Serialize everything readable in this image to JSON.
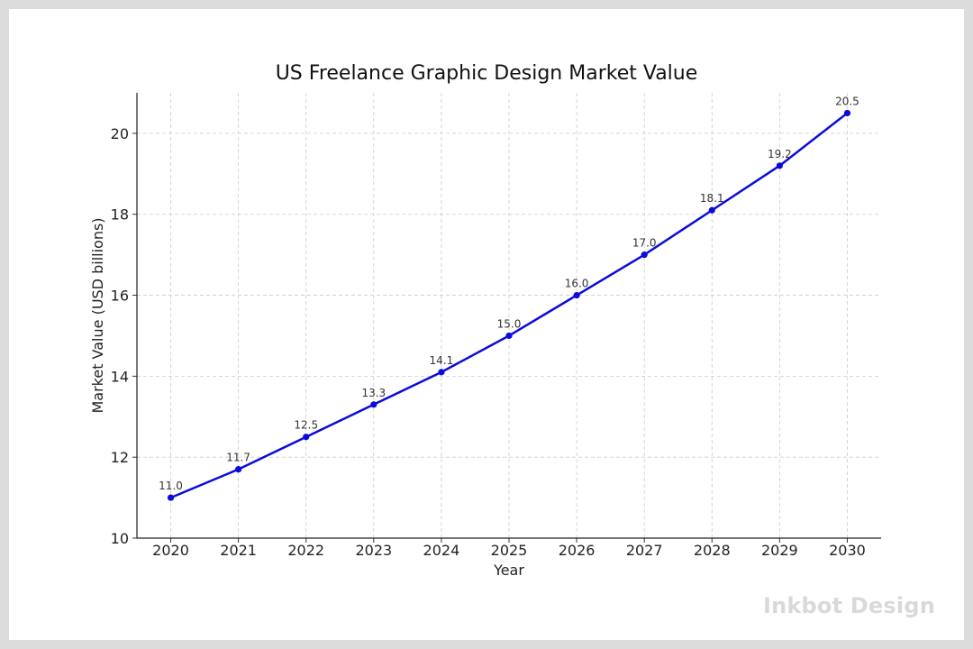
{
  "chart_data": {
    "type": "line",
    "title": "US Freelance Graphic Design Market Value",
    "xlabel": "Year",
    "ylabel": "Market Value (USD billions)",
    "x": [
      2020,
      2021,
      2022,
      2023,
      2024,
      2025,
      2026,
      2027,
      2028,
      2029,
      2030
    ],
    "series": [
      {
        "values": [
          11.0,
          11.7,
          12.5,
          13.3,
          14.1,
          15.0,
          16.0,
          17.0,
          18.1,
          19.2,
          20.5
        ],
        "color": "#0a0adc"
      }
    ],
    "data_labels": [
      "11.0",
      "11.7",
      "12.5",
      "13.3",
      "14.1",
      "15.0",
      "16.0",
      "17.0",
      "18.1",
      "19.2",
      "20.5"
    ],
    "xlim": [
      2019.5,
      2030.5
    ],
    "ylim": [
      10,
      21
    ],
    "y_ticks": [
      10,
      12,
      14,
      16,
      18,
      20
    ],
    "x_ticks": [
      2020,
      2021,
      2022,
      2023,
      2024,
      2025,
      2026,
      2027,
      2028,
      2029,
      2030
    ],
    "grid": true,
    "grid_style": "dashed",
    "markers": true
  },
  "watermark": {
    "text": "Inkbot Design",
    "color": "#d9d9d9"
  }
}
